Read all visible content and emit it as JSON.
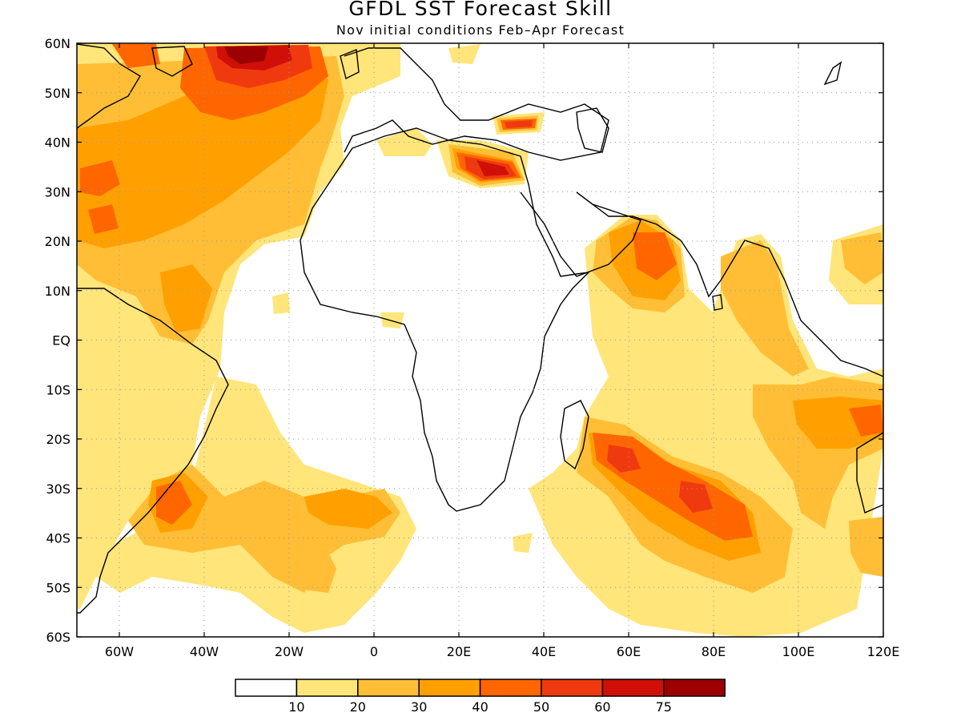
{
  "title": "GFDL SST Forecast Skill",
  "subtitle": "Nov initial conditions  Feb–Apr Forecast",
  "map": {
    "lon_range": [
      -70,
      120
    ],
    "lat_range": [
      -60,
      60
    ],
    "gridlines": "dotted",
    "lon_ticks": [
      "60W",
      "40W",
      "20W",
      "0",
      "20E",
      "40E",
      "60E",
      "80E",
      "100E",
      "120E"
    ],
    "lon_values": [
      -60,
      -40,
      -20,
      0,
      20,
      40,
      60,
      80,
      100,
      120
    ],
    "lat_ticks": [
      "60N",
      "50N",
      "40N",
      "30N",
      "20N",
      "10N",
      "EQ",
      "10S",
      "20S",
      "30S",
      "40S",
      "50S",
      "60S"
    ],
    "lat_values": [
      60,
      50,
      40,
      30,
      20,
      10,
      0,
      -10,
      -20,
      -30,
      -40,
      -50,
      -60
    ]
  },
  "colorbar": {
    "labels": [
      "10",
      "20",
      "30",
      "40",
      "50",
      "60",
      "75"
    ],
    "colors": [
      "#ffffff",
      "#ffe57a",
      "#ffbe35",
      "#ffa000",
      "#ff6600",
      "#ef3a10",
      "#d01008",
      "#9c0000"
    ]
  }
}
